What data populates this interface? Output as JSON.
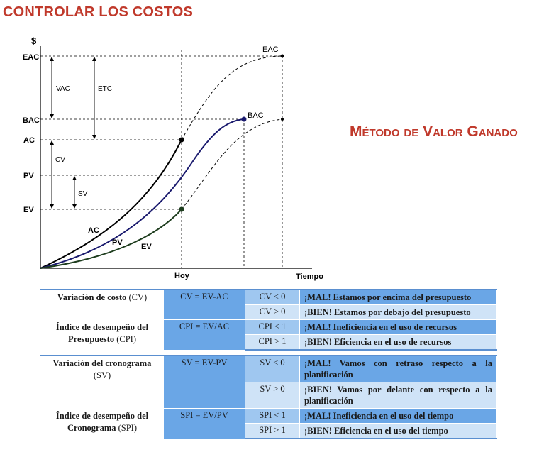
{
  "header": {
    "title": "CONTROLAR LOS COSTOS",
    "subtitle": "Método de Valor Ganado"
  },
  "diagram": {
    "y_axis_symbol": "$",
    "x_axis_label": "Tiempo",
    "today_label": "Hoy",
    "y_labels": {
      "eac": "EAC",
      "bac": "BAC",
      "ac": "AC",
      "pv": "PV",
      "ev": "EV"
    },
    "dimension_labels": {
      "vac": "VAC",
      "etc": "ETC",
      "cv": "CV",
      "sv": "SV"
    },
    "curve_labels": {
      "ac": "AC",
      "pv": "PV",
      "ev": "EV",
      "bac": "BAC",
      "eac": "EAC"
    },
    "colors": {
      "ac": "#000000",
      "pv": "#1a1a6e",
      "ev": "#1e3d1e",
      "accent": "#c0392b",
      "table_dark": "#6aa6e6",
      "table_light": "#cfe3f7"
    }
  },
  "table": {
    "rows": [
      {
        "name": "Variación de costo",
        "abbr": "(CV)",
        "formula": "CV = EV-AC",
        "conditions": [
          {
            "cond": "CV < 0",
            "msg": "¡MAL! Estamos por encima del presupuesto"
          },
          {
            "cond": "CV > 0",
            "msg": "¡BIEN! Estamos por debajo del presupuesto"
          }
        ]
      },
      {
        "name": "Índice de desempeño del Presupuesto",
        "abbr": "(CPI)",
        "formula": "CPI = EV/AC",
        "conditions": [
          {
            "cond": "CPI < 1",
            "msg": "¡MAL! Ineficiencia en el uso de recursos"
          },
          {
            "cond": "CPI > 1",
            "msg": "¡BIEN! Eficiencia en el uso de recursos"
          }
        ]
      },
      {
        "name": "Variación del cronograma",
        "abbr": "(SV)",
        "formula": "SV = EV-PV",
        "conditions": [
          {
            "cond": "SV < 0",
            "msg": "¡MAL! Vamos con retraso respecto a la planificación"
          },
          {
            "cond": "SV > 0",
            "msg": "¡BIEN! Vamos por delante con respecto a la planificación"
          }
        ]
      },
      {
        "name": "Índice de desempeño del Cronograma",
        "abbr": "(SPI)",
        "formula": "SPI = EV/PV",
        "conditions": [
          {
            "cond": "SPI < 1",
            "msg": "¡MAL! Ineficiencia en el uso del tiempo"
          },
          {
            "cond": "SPI > 1",
            "msg": "¡BIEN! Eficiencia en el uso del tiempo"
          }
        ]
      }
    ]
  }
}
